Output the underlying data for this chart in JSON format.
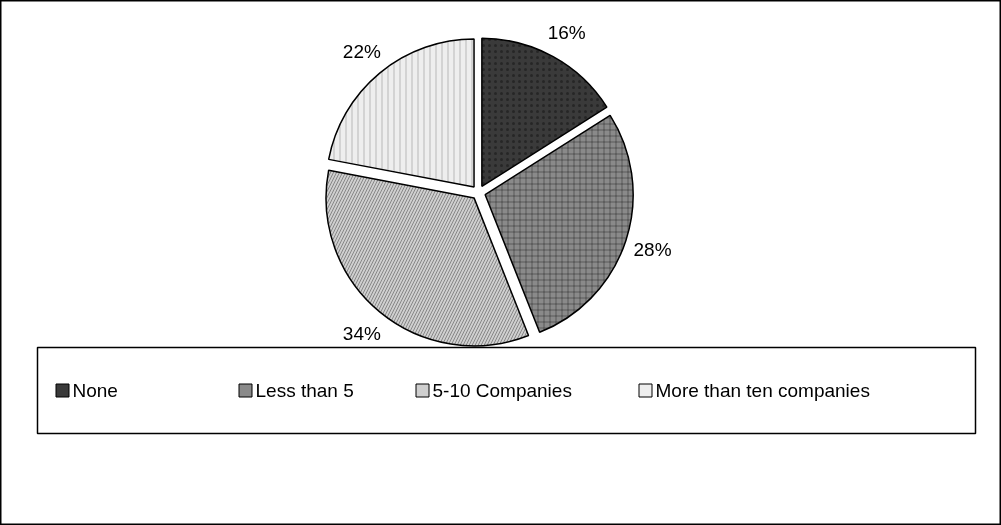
{
  "chart_data": {
    "type": "pie",
    "categories": [
      "None",
      "Less than 5",
      "5-10 Companies",
      "More than ten companies"
    ],
    "values": [
      16,
      28,
      34,
      22
    ],
    "value_labels": [
      "16%",
      "28%",
      "34%",
      "22%"
    ],
    "colors": [
      "#3a3a3a",
      "#8a8a8a",
      "#cfcfcf",
      "#eeeeee"
    ],
    "legend": "bottom"
  }
}
